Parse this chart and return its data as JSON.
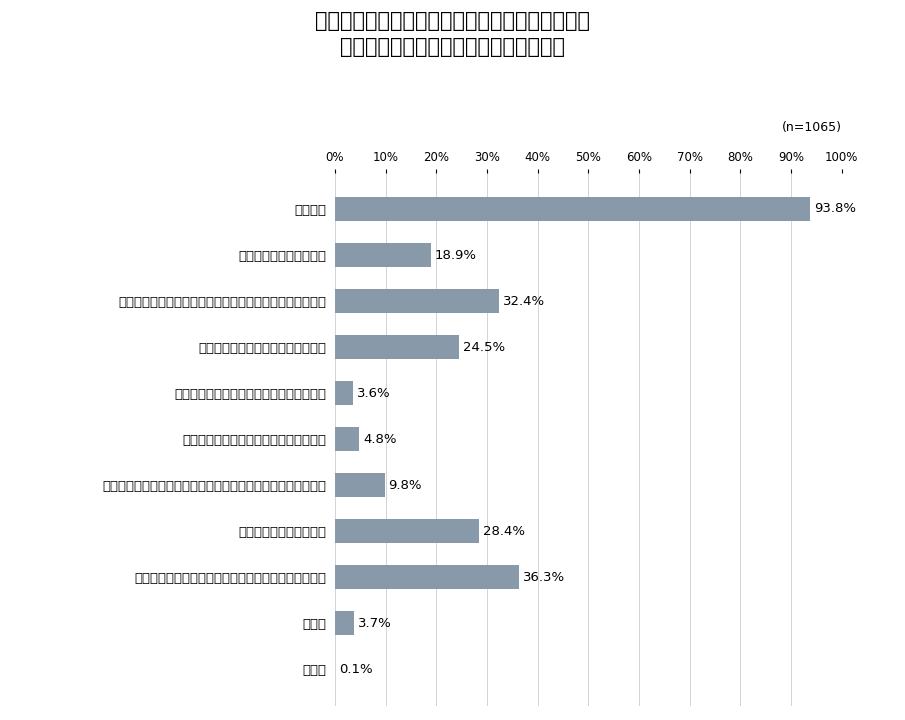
{
  "title_line1": "【契約時における情報セキュリティに関する要請",
  "title_line2": "（販売先（発注元企業）との契約時）】",
  "n_label": "(n=1065)",
  "categories": [
    "秘密保持",
    "証跡の提示、監査協力等",
    "情報セキュリティに関する契約内容に違反した場合の措置",
    "インシデントが発生した場合の対応",
    "可用性（稼働率の水準、目標復旧時間等）",
    "認証（ＩＳＭＳ等）取得の依頼／要件化",
    "新たな脅威（ぜい弱性等）が顕在化した場合の情報共有・対応",
    "再委託の禁止または制限",
    "契約終了後の情報資産の扱い（返却、消去、廃棄等）",
    "その他",
    "無回答"
  ],
  "values": [
    93.8,
    18.9,
    32.4,
    24.5,
    3.6,
    4.8,
    9.8,
    28.4,
    36.3,
    3.7,
    0.1
  ],
  "bar_color": "#8899aa",
  "background_color": "#ffffff",
  "xlim": [
    0,
    100
  ],
  "xticks": [
    0,
    10,
    20,
    30,
    40,
    50,
    60,
    70,
    80,
    90,
    100
  ],
  "xtick_labels": [
    "0%",
    "10%",
    "20%",
    "30%",
    "40%",
    "50%",
    "60%",
    "70%",
    "80%",
    "90%",
    "100%"
  ],
  "title_fontsize": 15,
  "label_fontsize": 9.5,
  "value_fontsize": 9.5,
  "tick_fontsize": 8.5,
  "n_label_fontsize": 9
}
